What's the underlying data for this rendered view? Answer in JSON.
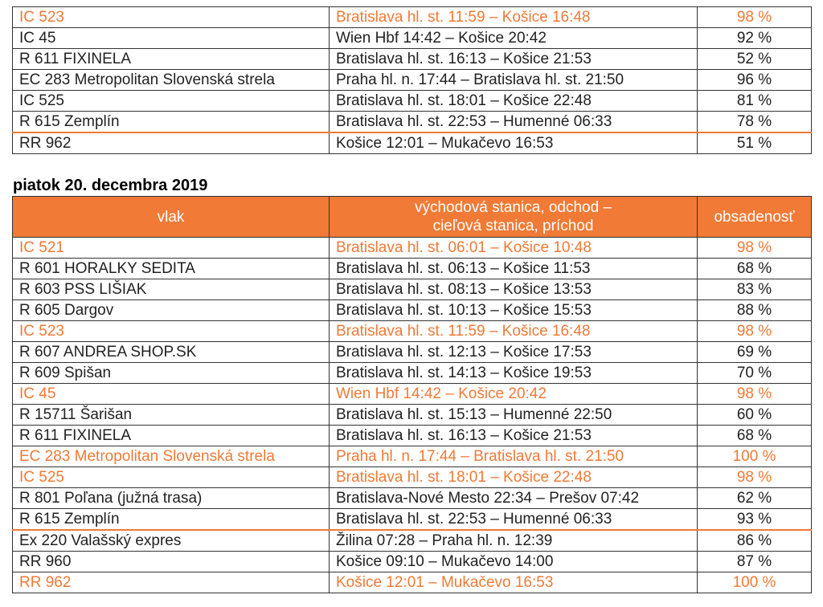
{
  "colors": {
    "highlight": "#f07a36",
    "header_bg": "#f07a36",
    "header_text": "#ffffff"
  },
  "table1": {
    "rows": [
      {
        "train": "IC 523",
        "route": "Bratislava hl. st. 11:59 – Košice 16:48",
        "occupancy": "98 %",
        "highlight": true,
        "separator_above": false
      },
      {
        "train": "IC 45",
        "route": "Wien Hbf 14:42 – Košice 20:42",
        "occupancy": "92 %",
        "highlight": false,
        "separator_above": false
      },
      {
        "train": "R 611 FIXINELA",
        "route": "Bratislava hl. st. 16:13 – Košice 21:53",
        "occupancy": "52 %",
        "highlight": false,
        "separator_above": false
      },
      {
        "train": "EC 283 Metropolitan Slovenská strela",
        "route": "Praha hl. n. 17:44 – Bratislava hl. st. 21:50",
        "occupancy": "96 %",
        "highlight": false,
        "separator_above": false
      },
      {
        "train": "IC 525",
        "route": "Bratislava hl. st. 18:01 – Košice 22:48",
        "occupancy": "81 %",
        "highlight": false,
        "separator_above": false
      },
      {
        "train": "R 615 Zemplín",
        "route": "Bratislava hl. st. 22:53 – Humenné 06:33",
        "occupancy": "78 %",
        "highlight": false,
        "separator_above": false
      },
      {
        "train": "RR 962",
        "route": "Košice 12:01 – Mukačevo 16:53",
        "occupancy": "51 %",
        "highlight": false,
        "separator_above": true
      }
    ]
  },
  "day_heading": "piatok 20. decembra 2019",
  "table2": {
    "headers": {
      "train": "vlak",
      "route_line1": "východová stanica, odchod –",
      "route_line2": "cieľová stanica, príchod",
      "occupancy": "obsadenosť"
    },
    "rows": [
      {
        "train": "IC 521",
        "route": "Bratislava hl. st. 06:01 – Košice 10:48",
        "occupancy": "98 %",
        "highlight": true,
        "separator_above": false
      },
      {
        "train": "R 601 HORALKY SEDITA",
        "route": "Bratislava hl. st. 06:13 – Košice 11:53",
        "occupancy": "68 %",
        "highlight": false,
        "separator_above": false
      },
      {
        "train": "R 603 PSS LIŠIAK",
        "route": "Bratislava hl. st. 08:13 – Košice 13:53",
        "occupancy": "83 %",
        "highlight": false,
        "separator_above": false
      },
      {
        "train": "R 605 Dargov",
        "route": "Bratislava hl. st. 10:13 – Košice 15:53",
        "occupancy": "88 %",
        "highlight": false,
        "separator_above": false
      },
      {
        "train": "IC 523",
        "route": "Bratislava hl. st. 11:59 – Košice 16:48",
        "occupancy": "98 %",
        "highlight": true,
        "separator_above": false
      },
      {
        "train": "R 607 ANDREA SHOP.SK",
        "route": "Bratislava hl. st. 12:13 – Košice 17:53",
        "occupancy": "69 %",
        "highlight": false,
        "separator_above": false
      },
      {
        "train": "R 609 Spišan",
        "route": "Bratislava hl. st. 14:13 – Košice 19:53",
        "occupancy": "70 %",
        "highlight": false,
        "separator_above": false
      },
      {
        "train": "IC 45",
        "route": "Wien Hbf 14:42 – Košice 20:42",
        "occupancy": "98 %",
        "highlight": true,
        "separator_above": false
      },
      {
        "train": "R 15711 Šarišan",
        "route": "Bratislava hl. st. 15:13 – Humenné 22:50",
        "occupancy": "60 %",
        "highlight": false,
        "separator_above": false
      },
      {
        "train": "R 611 FIXINELA",
        "route": "Bratislava hl. st. 16:13 – Košice 21:53",
        "occupancy": "68 %",
        "highlight": false,
        "separator_above": false
      },
      {
        "train": "EC 283 Metropolitan Slovenská strela",
        "route": "Praha hl. n. 17:44 – Bratislava hl. st. 21:50",
        "occupancy": "100 %",
        "highlight": true,
        "separator_above": false
      },
      {
        "train": "IC 525",
        "route": "Bratislava hl. st. 18:01 – Košice 22:48",
        "occupancy": "98 %",
        "highlight": true,
        "separator_above": false
      },
      {
        "train": "R 801 Poľana (južná trasa)",
        "route": "Bratislava-Nové Mesto 22:34 – Prešov 07:42",
        "occupancy": "62 %",
        "highlight": false,
        "separator_above": false
      },
      {
        "train": "R 615 Zemplín",
        "route": "Bratislava hl. st. 22:53 – Humenné 06:33",
        "occupancy": "93 %",
        "highlight": false,
        "separator_above": false
      },
      {
        "train": "Ex 220 Valašský expres",
        "route": "Žilina 07:28 – Praha hl. n. 12:39",
        "occupancy": "86 %",
        "highlight": false,
        "separator_above": true
      },
      {
        "train": "RR 960",
        "route": "Košice 09:10 – Mukačevo 14:00",
        "occupancy": "87 %",
        "highlight": false,
        "separator_above": false
      },
      {
        "train": "RR 962",
        "route": "Košice 12:01 – Mukačevo 16:53",
        "occupancy": "100 %",
        "highlight": true,
        "separator_above": false
      }
    ]
  }
}
